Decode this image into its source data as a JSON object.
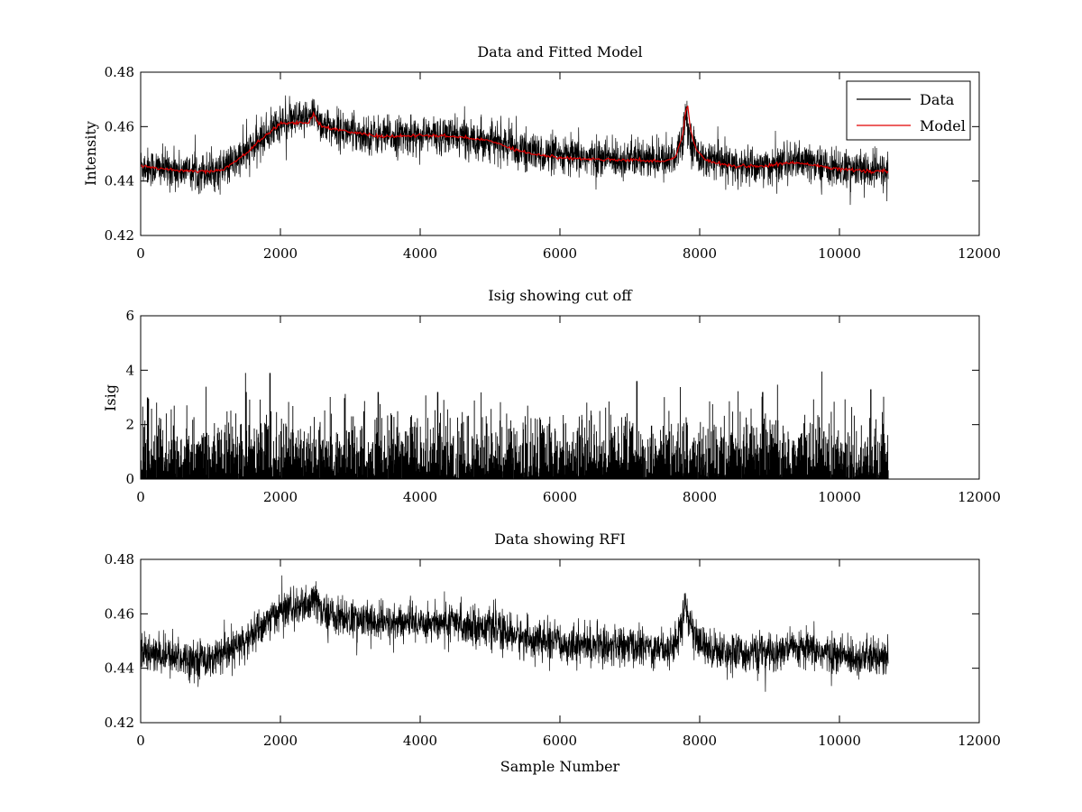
{
  "figure": {
    "xlabel": "Sample Number"
  },
  "chart_data": [
    {
      "type": "line",
      "title": "Data and Fitted Model",
      "xlabel": "",
      "ylabel": "Intensity",
      "xlim": [
        0,
        12000
      ],
      "ylim": [
        0.42,
        0.48
      ],
      "xticks": [
        0,
        2000,
        4000,
        6000,
        8000,
        10000,
        12000
      ],
      "xtick_labels": [
        "0",
        "2000",
        "4000",
        "6000",
        "8000",
        "10000",
        "12000"
      ],
      "yticks": [
        0.42,
        0.44,
        0.46,
        0.48
      ],
      "ytick_labels": [
        "0.42",
        "0.44",
        "0.46",
        "0.48"
      ],
      "grid": false,
      "legend": {
        "position": "top-right",
        "entries": [
          "Data",
          "Model"
        ]
      },
      "series": [
        {
          "name": "Data",
          "color": "#000000",
          "noise": 0.0035,
          "x": [
            0,
            500,
            1000,
            1200,
            1500,
            1800,
            2000,
            2200,
            2400,
            2500,
            2600,
            3000,
            3500,
            4000,
            4500,
            5000,
            5500,
            6000,
            6500,
            7000,
            7500,
            7650,
            7750,
            7800,
            7850,
            7950,
            8100,
            8500,
            9000,
            9300,
            9600,
            10000,
            10300,
            10700
          ],
          "values": [
            0.4455,
            0.444,
            0.4435,
            0.4445,
            0.45,
            0.457,
            0.4615,
            0.462,
            0.4625,
            0.4655,
            0.4605,
            0.458,
            0.4565,
            0.457,
            0.4565,
            0.455,
            0.451,
            0.449,
            0.4485,
            0.448,
            0.4475,
            0.449,
            0.456,
            0.466,
            0.457,
            0.4505,
            0.4475,
            0.4455,
            0.4455,
            0.447,
            0.4465,
            0.4445,
            0.444,
            0.4435
          ]
        },
        {
          "name": "Model",
          "color": "#e00000",
          "x": [
            0,
            500,
            1000,
            1200,
            1500,
            1800,
            2000,
            2200,
            2400,
            2480,
            2520,
            2600,
            3000,
            3500,
            4000,
            4500,
            5000,
            5500,
            6000,
            6500,
            7000,
            7500,
            7650,
            7750,
            7800,
            7830,
            7870,
            7950,
            8100,
            8500,
            9000,
            9300,
            9600,
            10000,
            10300,
            10700
          ],
          "values": [
            0.4455,
            0.444,
            0.4435,
            0.4445,
            0.45,
            0.457,
            0.461,
            0.4615,
            0.4615,
            0.465,
            0.462,
            0.46,
            0.458,
            0.4562,
            0.4568,
            0.4563,
            0.4548,
            0.4505,
            0.4485,
            0.448,
            0.4478,
            0.4473,
            0.4488,
            0.456,
            0.465,
            0.4675,
            0.459,
            0.4515,
            0.4475,
            0.4455,
            0.4456,
            0.4468,
            0.4462,
            0.4443,
            0.4438,
            0.4434
          ]
        }
      ]
    },
    {
      "type": "line",
      "title": "Isig showing cut off",
      "xlabel": "",
      "ylabel": "Isig",
      "xlim": [
        0,
        12000
      ],
      "ylim": [
        0,
        6
      ],
      "xticks": [
        0,
        2000,
        4000,
        6000,
        8000,
        10000,
        12000
      ],
      "xtick_labels": [
        "0",
        "2000",
        "4000",
        "6000",
        "8000",
        "10000",
        "12000"
      ],
      "yticks": [
        0,
        2,
        4,
        6
      ],
      "ytick_labels": [
        "0",
        "2",
        "4",
        "6"
      ],
      "grid": false,
      "series": [
        {
          "name": "Isig",
          "color": "#000000",
          "x": [
            0,
            10700
          ],
          "values": [
            0.8,
            0.8
          ],
          "noise": 0.85,
          "spikes": [
            [
              100,
              3.0
            ],
            [
              1500,
              3.9
            ],
            [
              1850,
              3.9
            ],
            [
              3400,
              3.2
            ],
            [
              4250,
              3.2
            ],
            [
              7100,
              3.6
            ],
            [
              8900,
              3.2
            ],
            [
              9750,
              3.95
            ],
            [
              10450,
              3.3
            ]
          ]
        }
      ]
    },
    {
      "type": "line",
      "title": "Data showing RFI",
      "xlabel": "Sample Number",
      "ylabel": "",
      "xlim": [
        0,
        12000
      ],
      "ylim": [
        0.42,
        0.48
      ],
      "xticks": [
        0,
        2000,
        4000,
        6000,
        8000,
        10000,
        12000
      ],
      "xtick_labels": [
        "0",
        "2000",
        "4000",
        "6000",
        "8000",
        "10000",
        "12000"
      ],
      "yticks": [
        0.42,
        0.44,
        0.46,
        0.48
      ],
      "ytick_labels": [
        "0.42",
        "0.44",
        "0.46",
        "0.48"
      ],
      "grid": false,
      "series": [
        {
          "name": "Data",
          "color": "#000000",
          "noise": 0.0035,
          "x": [
            0,
            500,
            1000,
            1200,
            1500,
            1800,
            2000,
            2200,
            2400,
            2500,
            2600,
            3000,
            3500,
            4000,
            4500,
            5000,
            5500,
            6000,
            6500,
            7000,
            7500,
            7650,
            7750,
            7800,
            7850,
            7950,
            8100,
            8500,
            9000,
            9300,
            9600,
            10000,
            10300,
            10700
          ],
          "values": [
            0.4455,
            0.444,
            0.4435,
            0.4445,
            0.45,
            0.457,
            0.4615,
            0.462,
            0.4625,
            0.4655,
            0.4605,
            0.458,
            0.4565,
            0.457,
            0.4565,
            0.455,
            0.451,
            0.449,
            0.4485,
            0.448,
            0.4475,
            0.449,
            0.456,
            0.466,
            0.457,
            0.4505,
            0.4475,
            0.4455,
            0.4455,
            0.447,
            0.4465,
            0.4445,
            0.444,
            0.4435
          ]
        }
      ]
    }
  ]
}
